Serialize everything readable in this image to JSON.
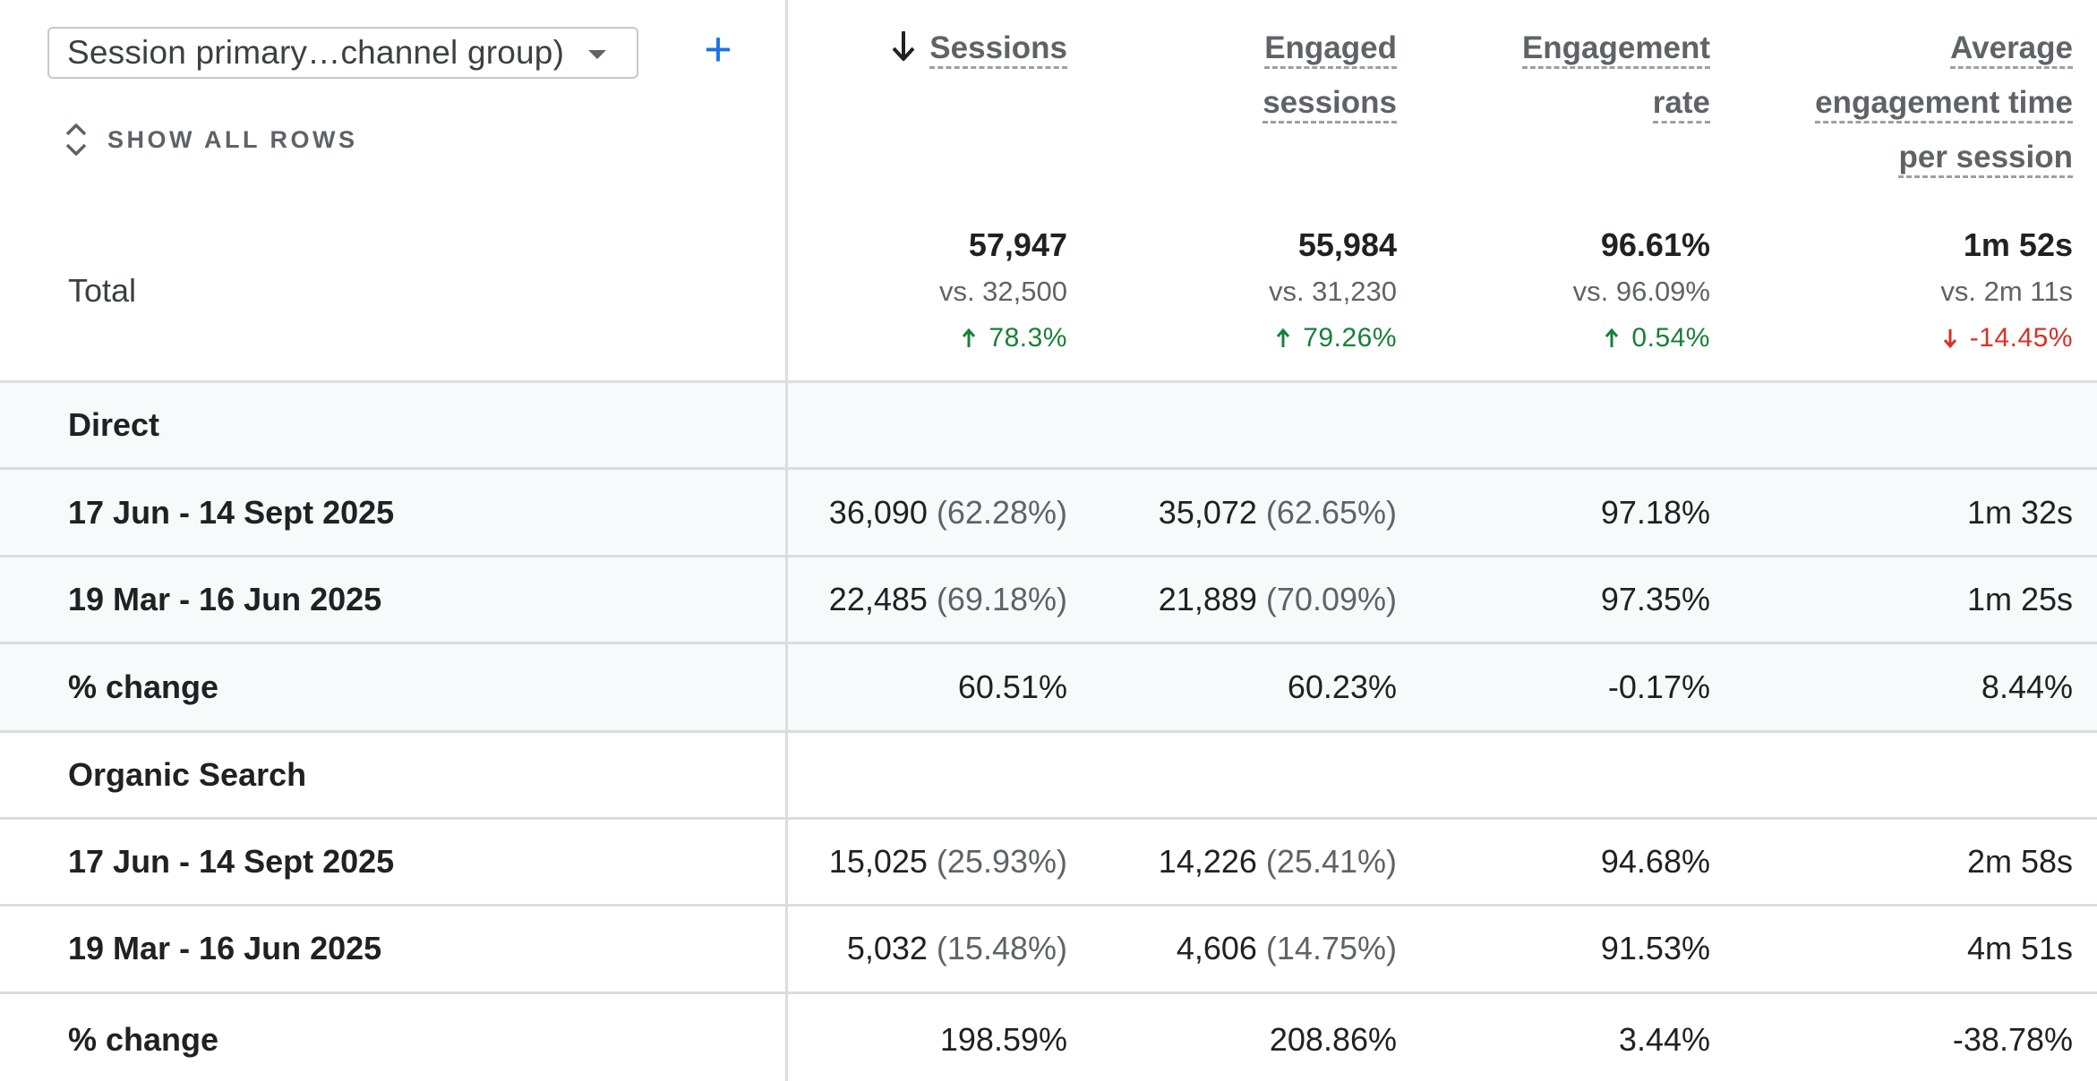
{
  "controls": {
    "dimension_select": "Session primary…channel group)",
    "add_dimension": "+",
    "show_all_rows": "SHOW ALL ROWS"
  },
  "columns": {
    "sessions": {
      "line1": "Sessions"
    },
    "engaged": {
      "line1": "Engaged",
      "line2": "sessions"
    },
    "rate": {
      "line1": "Engagement",
      "line2": "rate"
    },
    "avg": {
      "line1": "Average",
      "line2": "engagement time",
      "line3": "per session"
    }
  },
  "totals": {
    "label": "Total",
    "sessions": {
      "value": "57,947",
      "vs": "vs. 32,500",
      "change": "78.3%",
      "direction": "up"
    },
    "engaged": {
      "value": "55,984",
      "vs": "vs. 31,230",
      "change": "79.26%",
      "direction": "up"
    },
    "rate": {
      "value": "96.61%",
      "vs": "vs. 96.09%",
      "change": "0.54%",
      "direction": "up"
    },
    "avg": {
      "value": "1m 52s",
      "vs": "vs. 2m 11s",
      "change": "-14.45%",
      "direction": "down"
    }
  },
  "groups": [
    {
      "name": "Direct",
      "rows": [
        {
          "label": "17 Jun - 14 Sept 2025",
          "sessions": "36,090",
          "sessions_pct": "(62.28%)",
          "engaged": "35,072",
          "engaged_pct": "(62.65%)",
          "rate": "97.18%",
          "avg": "1m 32s"
        },
        {
          "label": "19 Mar - 16 Jun 2025",
          "sessions": "22,485",
          "sessions_pct": "(69.18%)",
          "engaged": "21,889",
          "engaged_pct": "(70.09%)",
          "rate": "97.35%",
          "avg": "1m 25s"
        },
        {
          "label": "% change",
          "sessions": "60.51%",
          "sessions_pct": "",
          "engaged": "60.23%",
          "engaged_pct": "",
          "rate": "-0.17%",
          "avg": "8.44%"
        }
      ]
    },
    {
      "name": "Organic Search",
      "rows": [
        {
          "label": "17 Jun - 14 Sept 2025",
          "sessions": "15,025",
          "sessions_pct": "(25.93%)",
          "engaged": "14,226",
          "engaged_pct": "(25.41%)",
          "rate": "94.68%",
          "avg": "2m 58s"
        },
        {
          "label": "19 Mar - 16 Jun 2025",
          "sessions": "5,032",
          "sessions_pct": "(15.48%)",
          "engaged": "4,606",
          "engaged_pct": "(14.75%)",
          "rate": "91.53%",
          "avg": "4m 51s"
        },
        {
          "label": "% change",
          "sessions": "198.59%",
          "sessions_pct": "",
          "engaged": "208.86%",
          "engaged_pct": "",
          "rate": "3.44%",
          "avg": "-38.78%"
        }
      ]
    }
  ],
  "colors": {
    "accent": "#1a73e8",
    "positive": "#188038",
    "negative": "#d93025",
    "row_shade": "#f8f9fa",
    "divider": "#dadce0"
  },
  "icons": {
    "sort": "arrow-down-icon",
    "expand": "unfold-icon",
    "caret": "caret-down-icon"
  }
}
